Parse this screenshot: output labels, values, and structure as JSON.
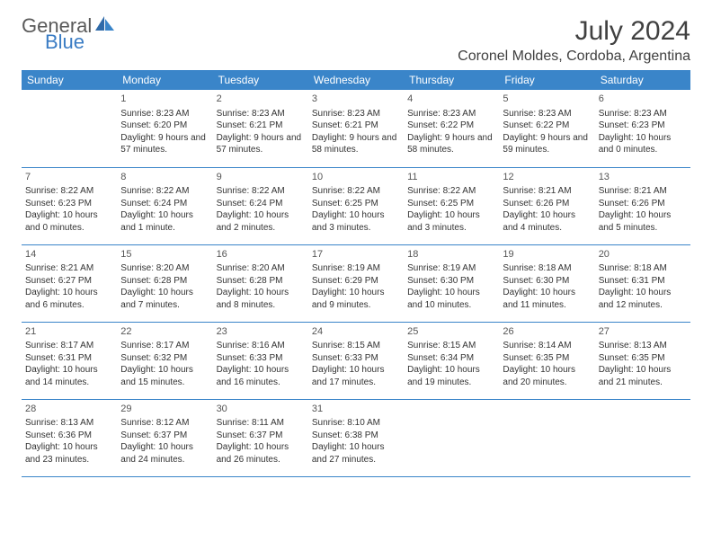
{
  "brand": {
    "general": "General",
    "blue": "Blue"
  },
  "title": "July 2024",
  "location": "Coronel Moldes, Cordoba, Argentina",
  "colors": {
    "header_bg": "#3a85c9",
    "header_fg": "#ffffff",
    "row_border": "#3a85c9",
    "logo_gray": "#5a5a5a",
    "logo_blue": "#3a7cc4",
    "text": "#333333"
  },
  "weekdays": [
    "Sunday",
    "Monday",
    "Tuesday",
    "Wednesday",
    "Thursday",
    "Friday",
    "Saturday"
  ],
  "weeks": [
    [
      null,
      {
        "n": "1",
        "sr": "Sunrise: 8:23 AM",
        "ss": "Sunset: 6:20 PM",
        "dl": "Daylight: 9 hours and 57 minutes."
      },
      {
        "n": "2",
        "sr": "Sunrise: 8:23 AM",
        "ss": "Sunset: 6:21 PM",
        "dl": "Daylight: 9 hours and 57 minutes."
      },
      {
        "n": "3",
        "sr": "Sunrise: 8:23 AM",
        "ss": "Sunset: 6:21 PM",
        "dl": "Daylight: 9 hours and 58 minutes."
      },
      {
        "n": "4",
        "sr": "Sunrise: 8:23 AM",
        "ss": "Sunset: 6:22 PM",
        "dl": "Daylight: 9 hours and 58 minutes."
      },
      {
        "n": "5",
        "sr": "Sunrise: 8:23 AM",
        "ss": "Sunset: 6:22 PM",
        "dl": "Daylight: 9 hours and 59 minutes."
      },
      {
        "n": "6",
        "sr": "Sunrise: 8:23 AM",
        "ss": "Sunset: 6:23 PM",
        "dl": "Daylight: 10 hours and 0 minutes."
      }
    ],
    [
      {
        "n": "7",
        "sr": "Sunrise: 8:22 AM",
        "ss": "Sunset: 6:23 PM",
        "dl": "Daylight: 10 hours and 0 minutes."
      },
      {
        "n": "8",
        "sr": "Sunrise: 8:22 AM",
        "ss": "Sunset: 6:24 PM",
        "dl": "Daylight: 10 hours and 1 minute."
      },
      {
        "n": "9",
        "sr": "Sunrise: 8:22 AM",
        "ss": "Sunset: 6:24 PM",
        "dl": "Daylight: 10 hours and 2 minutes."
      },
      {
        "n": "10",
        "sr": "Sunrise: 8:22 AM",
        "ss": "Sunset: 6:25 PM",
        "dl": "Daylight: 10 hours and 3 minutes."
      },
      {
        "n": "11",
        "sr": "Sunrise: 8:22 AM",
        "ss": "Sunset: 6:25 PM",
        "dl": "Daylight: 10 hours and 3 minutes."
      },
      {
        "n": "12",
        "sr": "Sunrise: 8:21 AM",
        "ss": "Sunset: 6:26 PM",
        "dl": "Daylight: 10 hours and 4 minutes."
      },
      {
        "n": "13",
        "sr": "Sunrise: 8:21 AM",
        "ss": "Sunset: 6:26 PM",
        "dl": "Daylight: 10 hours and 5 minutes."
      }
    ],
    [
      {
        "n": "14",
        "sr": "Sunrise: 8:21 AM",
        "ss": "Sunset: 6:27 PM",
        "dl": "Daylight: 10 hours and 6 minutes."
      },
      {
        "n": "15",
        "sr": "Sunrise: 8:20 AM",
        "ss": "Sunset: 6:28 PM",
        "dl": "Daylight: 10 hours and 7 minutes."
      },
      {
        "n": "16",
        "sr": "Sunrise: 8:20 AM",
        "ss": "Sunset: 6:28 PM",
        "dl": "Daylight: 10 hours and 8 minutes."
      },
      {
        "n": "17",
        "sr": "Sunrise: 8:19 AM",
        "ss": "Sunset: 6:29 PM",
        "dl": "Daylight: 10 hours and 9 minutes."
      },
      {
        "n": "18",
        "sr": "Sunrise: 8:19 AM",
        "ss": "Sunset: 6:30 PM",
        "dl": "Daylight: 10 hours and 10 minutes."
      },
      {
        "n": "19",
        "sr": "Sunrise: 8:18 AM",
        "ss": "Sunset: 6:30 PM",
        "dl": "Daylight: 10 hours and 11 minutes."
      },
      {
        "n": "20",
        "sr": "Sunrise: 8:18 AM",
        "ss": "Sunset: 6:31 PM",
        "dl": "Daylight: 10 hours and 12 minutes."
      }
    ],
    [
      {
        "n": "21",
        "sr": "Sunrise: 8:17 AM",
        "ss": "Sunset: 6:31 PM",
        "dl": "Daylight: 10 hours and 14 minutes."
      },
      {
        "n": "22",
        "sr": "Sunrise: 8:17 AM",
        "ss": "Sunset: 6:32 PM",
        "dl": "Daylight: 10 hours and 15 minutes."
      },
      {
        "n": "23",
        "sr": "Sunrise: 8:16 AM",
        "ss": "Sunset: 6:33 PM",
        "dl": "Daylight: 10 hours and 16 minutes."
      },
      {
        "n": "24",
        "sr": "Sunrise: 8:15 AM",
        "ss": "Sunset: 6:33 PM",
        "dl": "Daylight: 10 hours and 17 minutes."
      },
      {
        "n": "25",
        "sr": "Sunrise: 8:15 AM",
        "ss": "Sunset: 6:34 PM",
        "dl": "Daylight: 10 hours and 19 minutes."
      },
      {
        "n": "26",
        "sr": "Sunrise: 8:14 AM",
        "ss": "Sunset: 6:35 PM",
        "dl": "Daylight: 10 hours and 20 minutes."
      },
      {
        "n": "27",
        "sr": "Sunrise: 8:13 AM",
        "ss": "Sunset: 6:35 PM",
        "dl": "Daylight: 10 hours and 21 minutes."
      }
    ],
    [
      {
        "n": "28",
        "sr": "Sunrise: 8:13 AM",
        "ss": "Sunset: 6:36 PM",
        "dl": "Daylight: 10 hours and 23 minutes."
      },
      {
        "n": "29",
        "sr": "Sunrise: 8:12 AM",
        "ss": "Sunset: 6:37 PM",
        "dl": "Daylight: 10 hours and 24 minutes."
      },
      {
        "n": "30",
        "sr": "Sunrise: 8:11 AM",
        "ss": "Sunset: 6:37 PM",
        "dl": "Daylight: 10 hours and 26 minutes."
      },
      {
        "n": "31",
        "sr": "Sunrise: 8:10 AM",
        "ss": "Sunset: 6:38 PM",
        "dl": "Daylight: 10 hours and 27 minutes."
      },
      null,
      null,
      null
    ]
  ]
}
